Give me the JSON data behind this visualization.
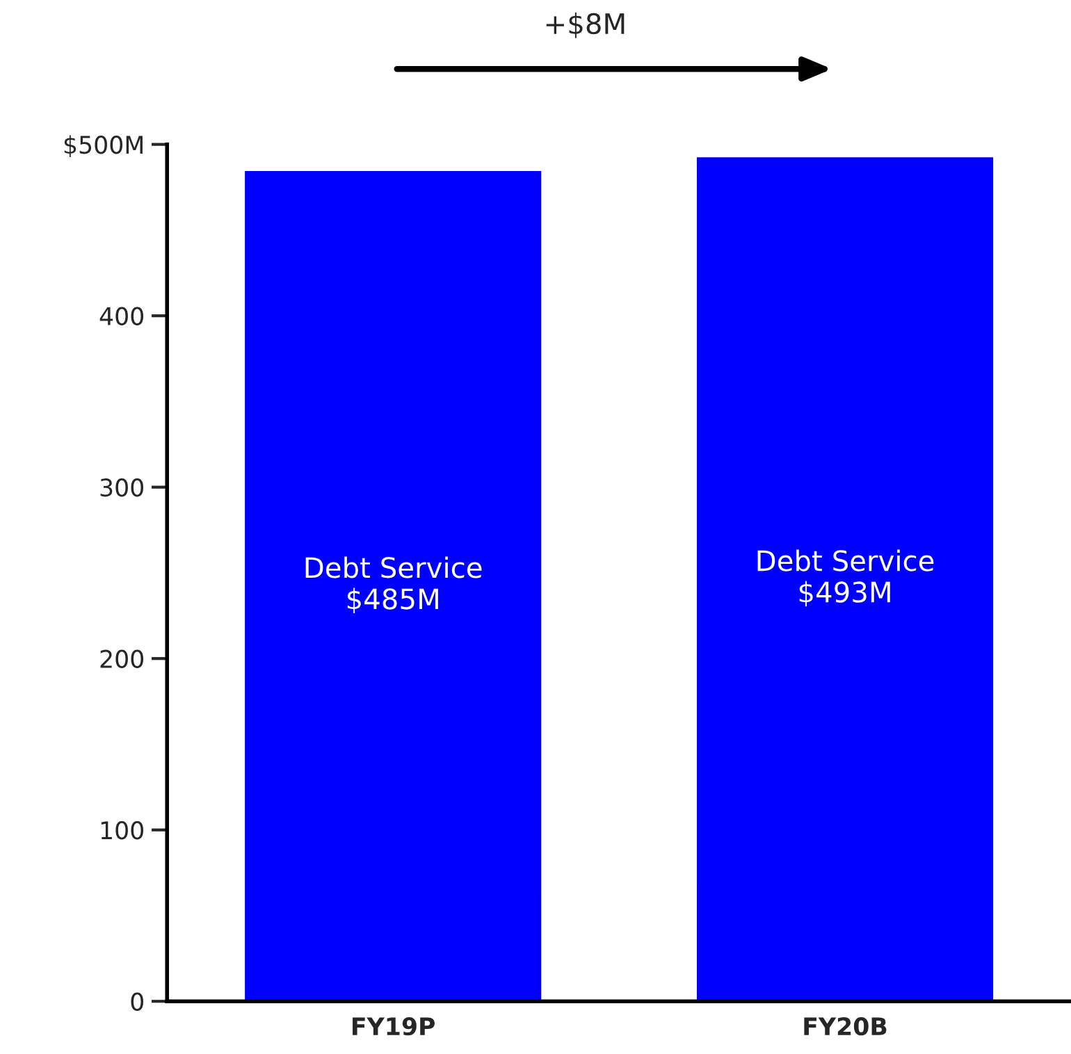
{
  "chart_data": {
    "type": "bar",
    "categories": [
      "FY19P",
      "FY20B"
    ],
    "values": [
      485,
      493
    ],
    "color": "#0000ff",
    "value_labels": [
      "Debt Service\n$485M",
      "Debt Service\n$493M"
    ],
    "ylim": [
      0,
      500
    ],
    "yticks": [
      0,
      100,
      200,
      300,
      400,
      {
        "value": 500,
        "label": "$500M"
      }
    ],
    "grid": false,
    "legend": false,
    "annotations": [
      "+$8M"
    ]
  }
}
